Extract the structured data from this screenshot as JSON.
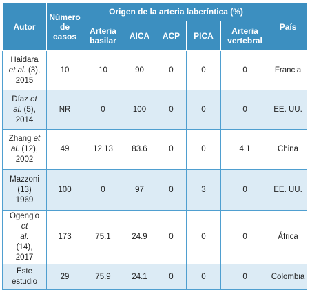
{
  "headers": {
    "author": "Autor",
    "cases": "Número de casos",
    "origin_group": "Origen de la arteria laberíntica (%)",
    "country": "País",
    "sub": [
      "Arteria basilar",
      "AICA",
      "ACP",
      "PICA",
      "Arteria vertebral"
    ]
  },
  "rows": [
    {
      "author": [
        "Haidara",
        "et al.",
        "(3),",
        "2015"
      ],
      "cases": "10",
      "basilar": "10",
      "aica": "90",
      "acp": "0",
      "pica": "0",
      "vertebral": "0",
      "country": "Francia"
    },
    {
      "author": [
        "Díaz",
        "et",
        "al.",
        "(5),",
        "2014"
      ],
      "cases": "NR",
      "basilar": "0",
      "aica": "100",
      "acp": "0",
      "pica": "0",
      "vertebral": "0",
      "country": "EE. UU."
    },
    {
      "author": [
        "Zhang",
        "et",
        "al.",
        "(12),",
        "2002"
      ],
      "cases": "49",
      "basilar": "12.13",
      "aica": "83.6",
      "acp": "0",
      "pica": "0",
      "vertebral": "4.1",
      "country": "China"
    },
    {
      "author": [
        "Mazzoni",
        "(13)",
        "1969"
      ],
      "cases": "100",
      "basilar": "0",
      "aica": "97",
      "acp": "0",
      "pica": "3",
      "vertebral": "0",
      "country": "EE. UU."
    },
    {
      "author": [
        "Ogeng'o",
        "et",
        "al.",
        "(14),",
        "2017"
      ],
      "cases": "173",
      "basilar": "75.1",
      "aica": "24.9",
      "acp": "0",
      "pica": "0",
      "vertebral": "0",
      "country": "África"
    },
    {
      "author": [
        "Este",
        "estudio"
      ],
      "cases": "29",
      "basilar": "75.9",
      "aica": "24.1",
      "acp": "0",
      "pica": "0",
      "vertebral": "0",
      "country": "Colombia"
    }
  ]
}
